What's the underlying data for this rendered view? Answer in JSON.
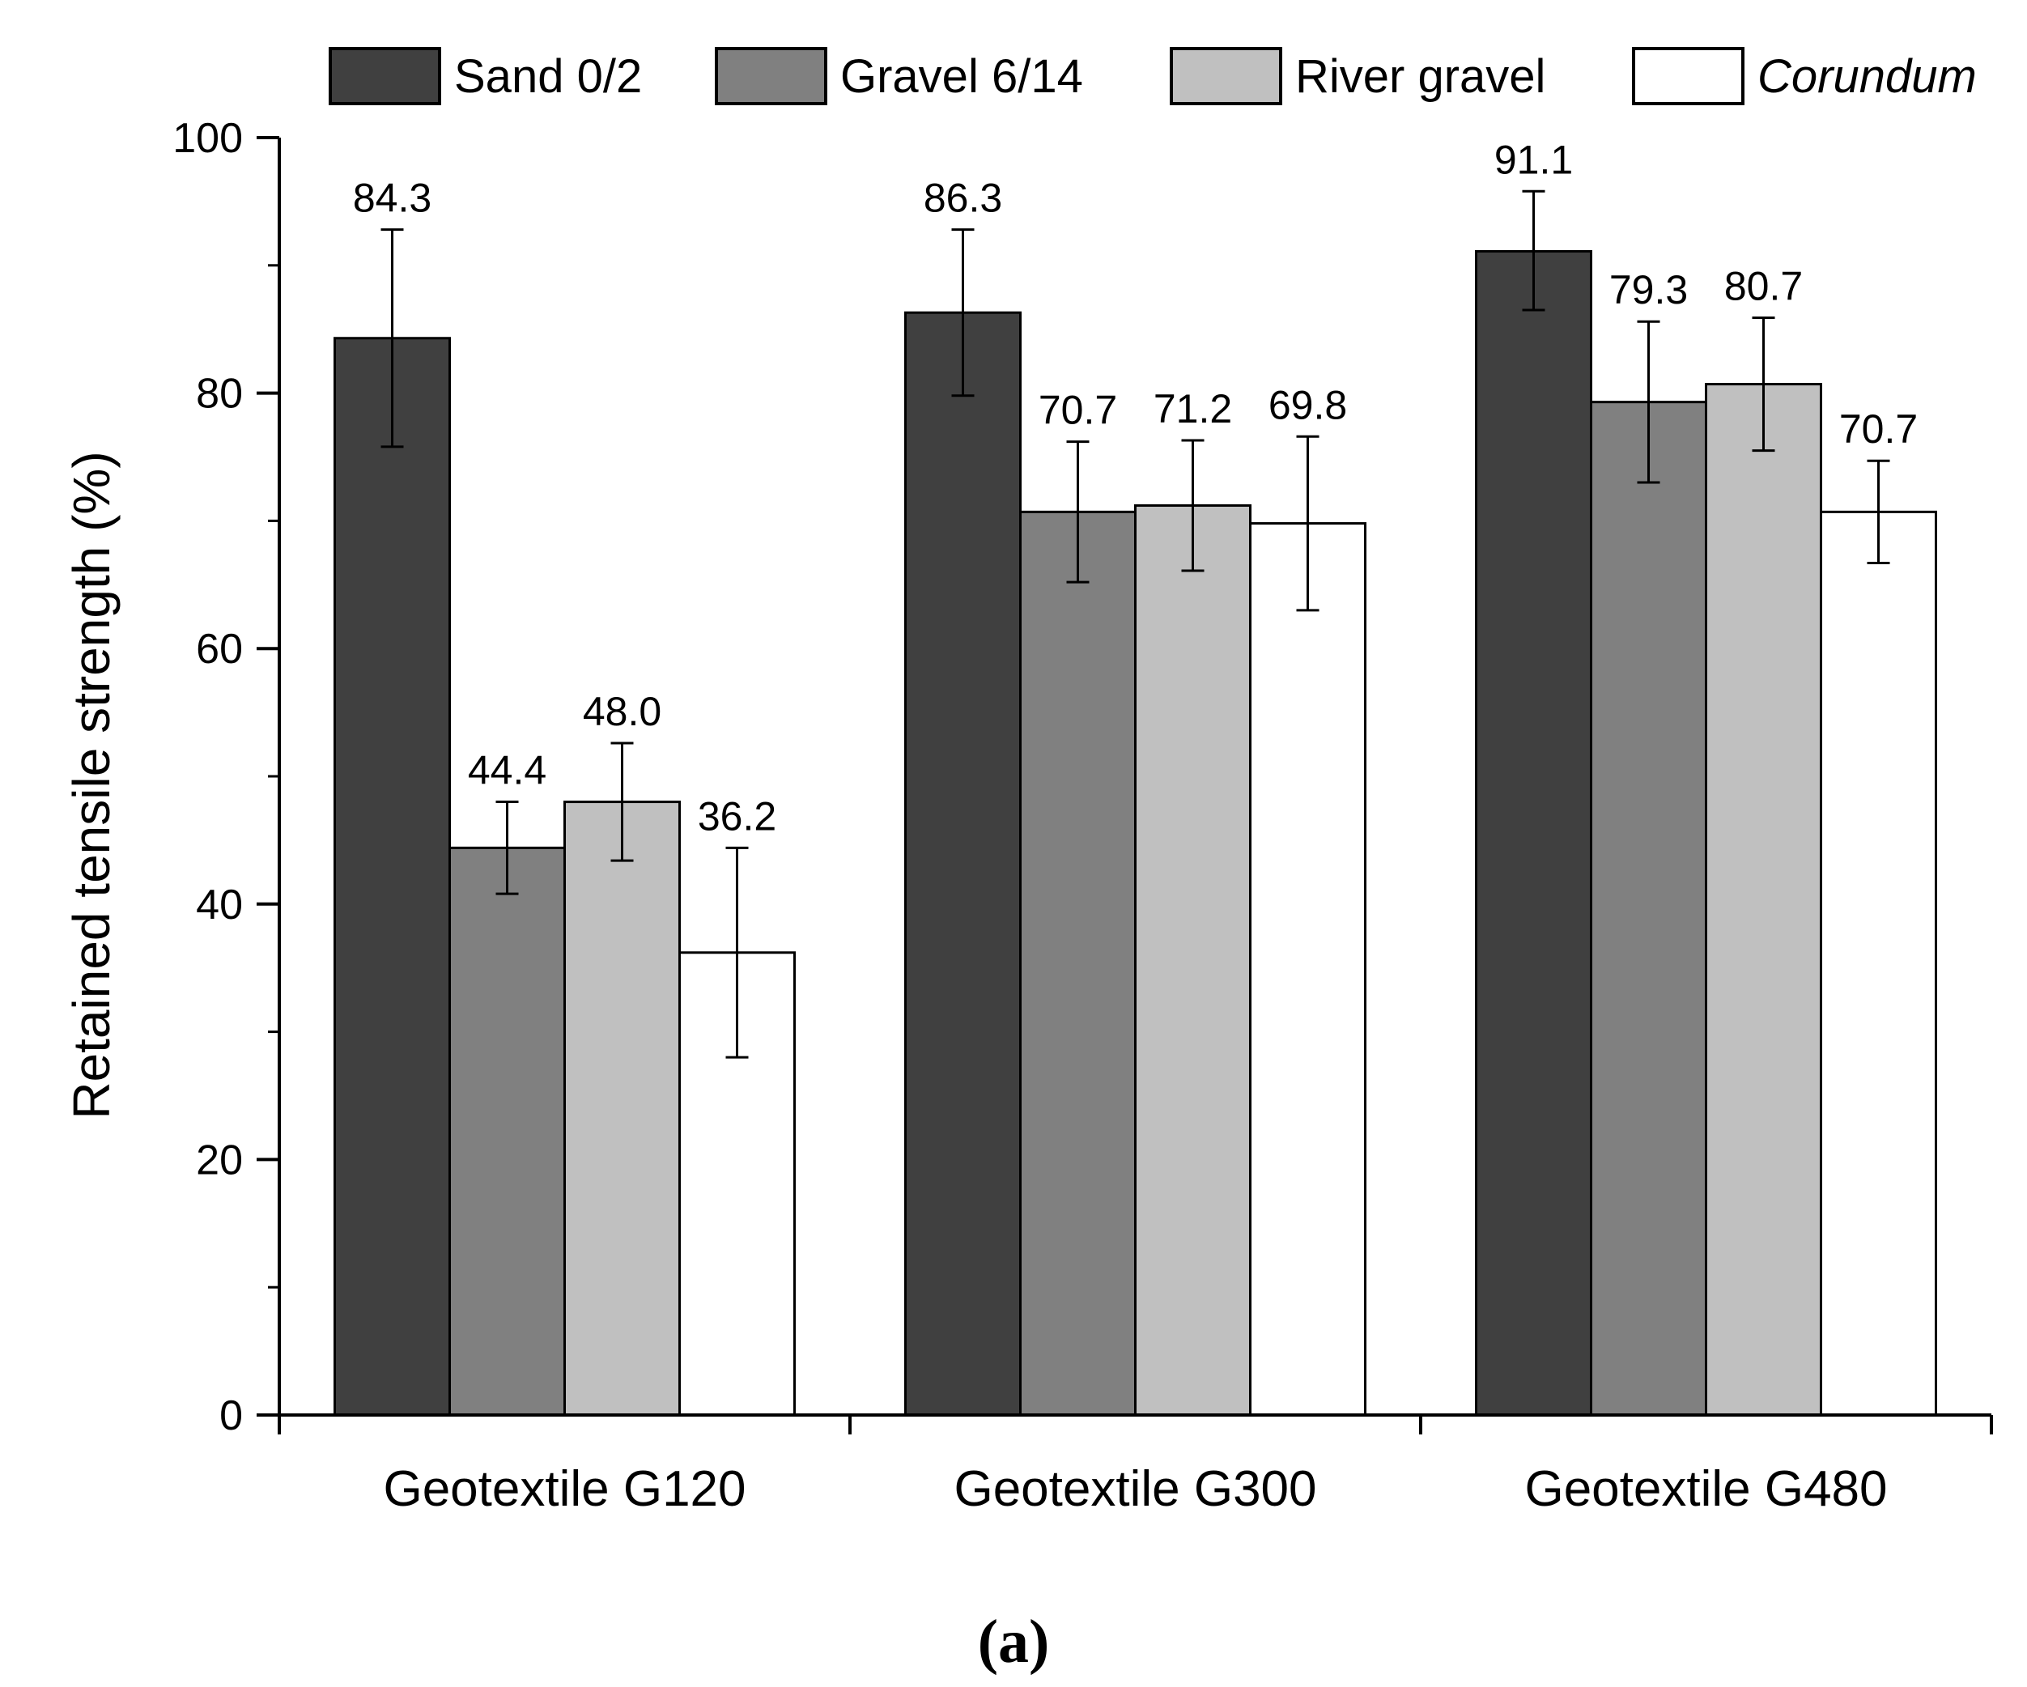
{
  "chart_data": {
    "type": "bar",
    "title": "",
    "xlabel": "",
    "ylabel": "Retained tensile strength (%)",
    "ylim": [
      0,
      100
    ],
    "yticks": [
      0,
      20,
      40,
      60,
      80,
      100
    ],
    "categories": [
      "Geotextile G120",
      "Geotextile G300",
      "Geotextile G480"
    ],
    "series": [
      {
        "name": "Sand 0/2",
        "color": "#404040",
        "italic": false,
        "values": [
          84.3,
          86.3,
          91.1
        ],
        "labels": [
          "84.3",
          "86.3",
          "91.1"
        ],
        "err_low": [
          75.8,
          79.8,
          86.5
        ],
        "err_high": [
          92.8,
          92.8,
          95.8
        ]
      },
      {
        "name": "Gravel 6/14",
        "color": "#808080",
        "italic": false,
        "values": [
          44.4,
          70.7,
          79.3
        ],
        "labels": [
          "44.4",
          "70.7",
          "79.3"
        ],
        "err_low": [
          40.8,
          65.2,
          73.0
        ],
        "err_high": [
          48.0,
          76.2,
          85.6
        ]
      },
      {
        "name": "River gravel",
        "color": "#c0c0c0",
        "italic": false,
        "values": [
          48.0,
          71.2,
          80.7
        ],
        "labels": [
          "48.0",
          "71.2",
          "80.7"
        ],
        "err_low": [
          43.4,
          66.1,
          75.5
        ],
        "err_high": [
          52.6,
          76.3,
          85.9
        ]
      },
      {
        "name": "Corundum",
        "color": "#ffffff",
        "italic": true,
        "values": [
          36.2,
          69.8,
          70.7
        ],
        "labels": [
          "36.2",
          "69.8",
          "70.7"
        ],
        "err_low": [
          28.0,
          63.0,
          66.7
        ],
        "err_high": [
          44.4,
          76.6,
          74.7
        ]
      }
    ],
    "legend_position": "top",
    "panel_label": "(a)"
  }
}
